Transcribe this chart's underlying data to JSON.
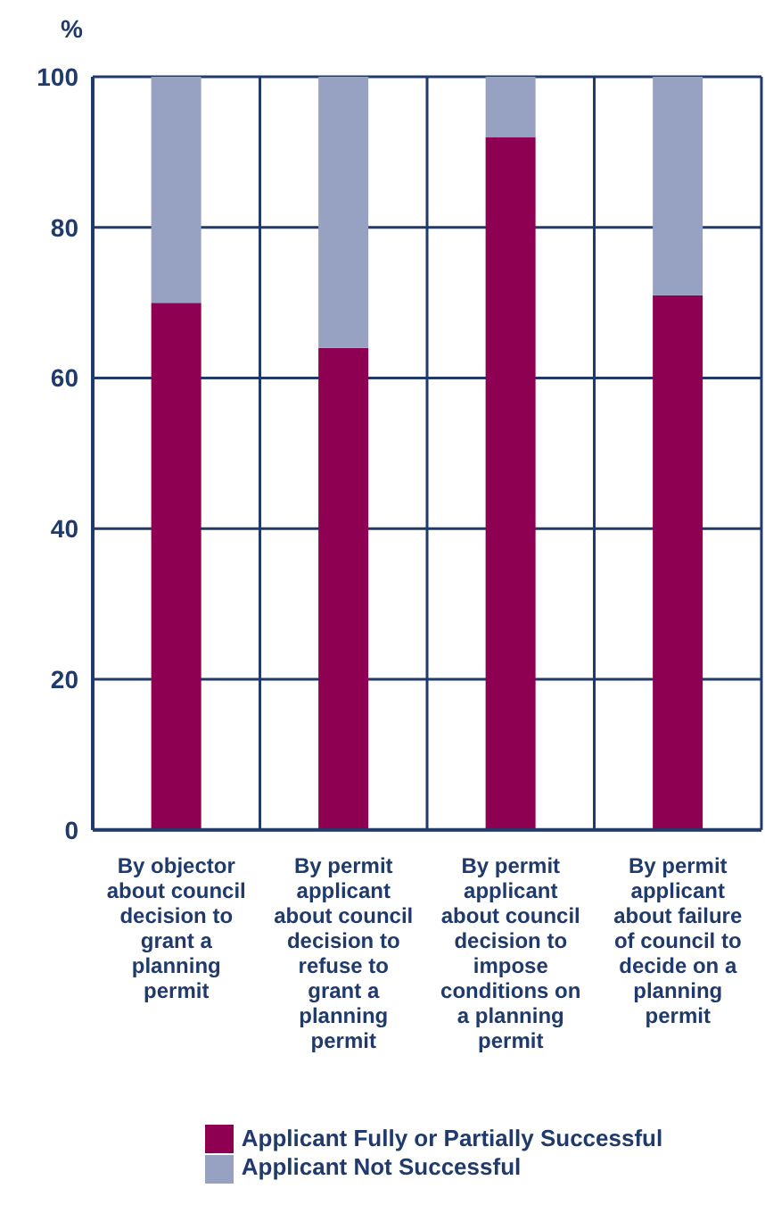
{
  "chart_data": {
    "type": "bar",
    "stacked": true,
    "ylabel": "%",
    "categories": [
      "By objector about council decision to grant a planning permit",
      "By permit applicant about council decision to refuse to grant a planning permit",
      "By permit applicant about council decision to impose conditions on a planning permit",
      "By permit applicant about failure of council to decide on a planning permit"
    ],
    "series": [
      {
        "name": "Applicant Fully or Partially Successful",
        "color": "#8e0052",
        "values": [
          70,
          64,
          92,
          71
        ]
      },
      {
        "name": "Applicant Not Successful",
        "color": "#97a2c2",
        "values": [
          30,
          36,
          8,
          29
        ]
      }
    ],
    "ylim": [
      0,
      100
    ],
    "yticks": [
      0,
      20,
      40,
      60,
      80,
      100
    ],
    "grid": true,
    "legend": "bottom"
  }
}
